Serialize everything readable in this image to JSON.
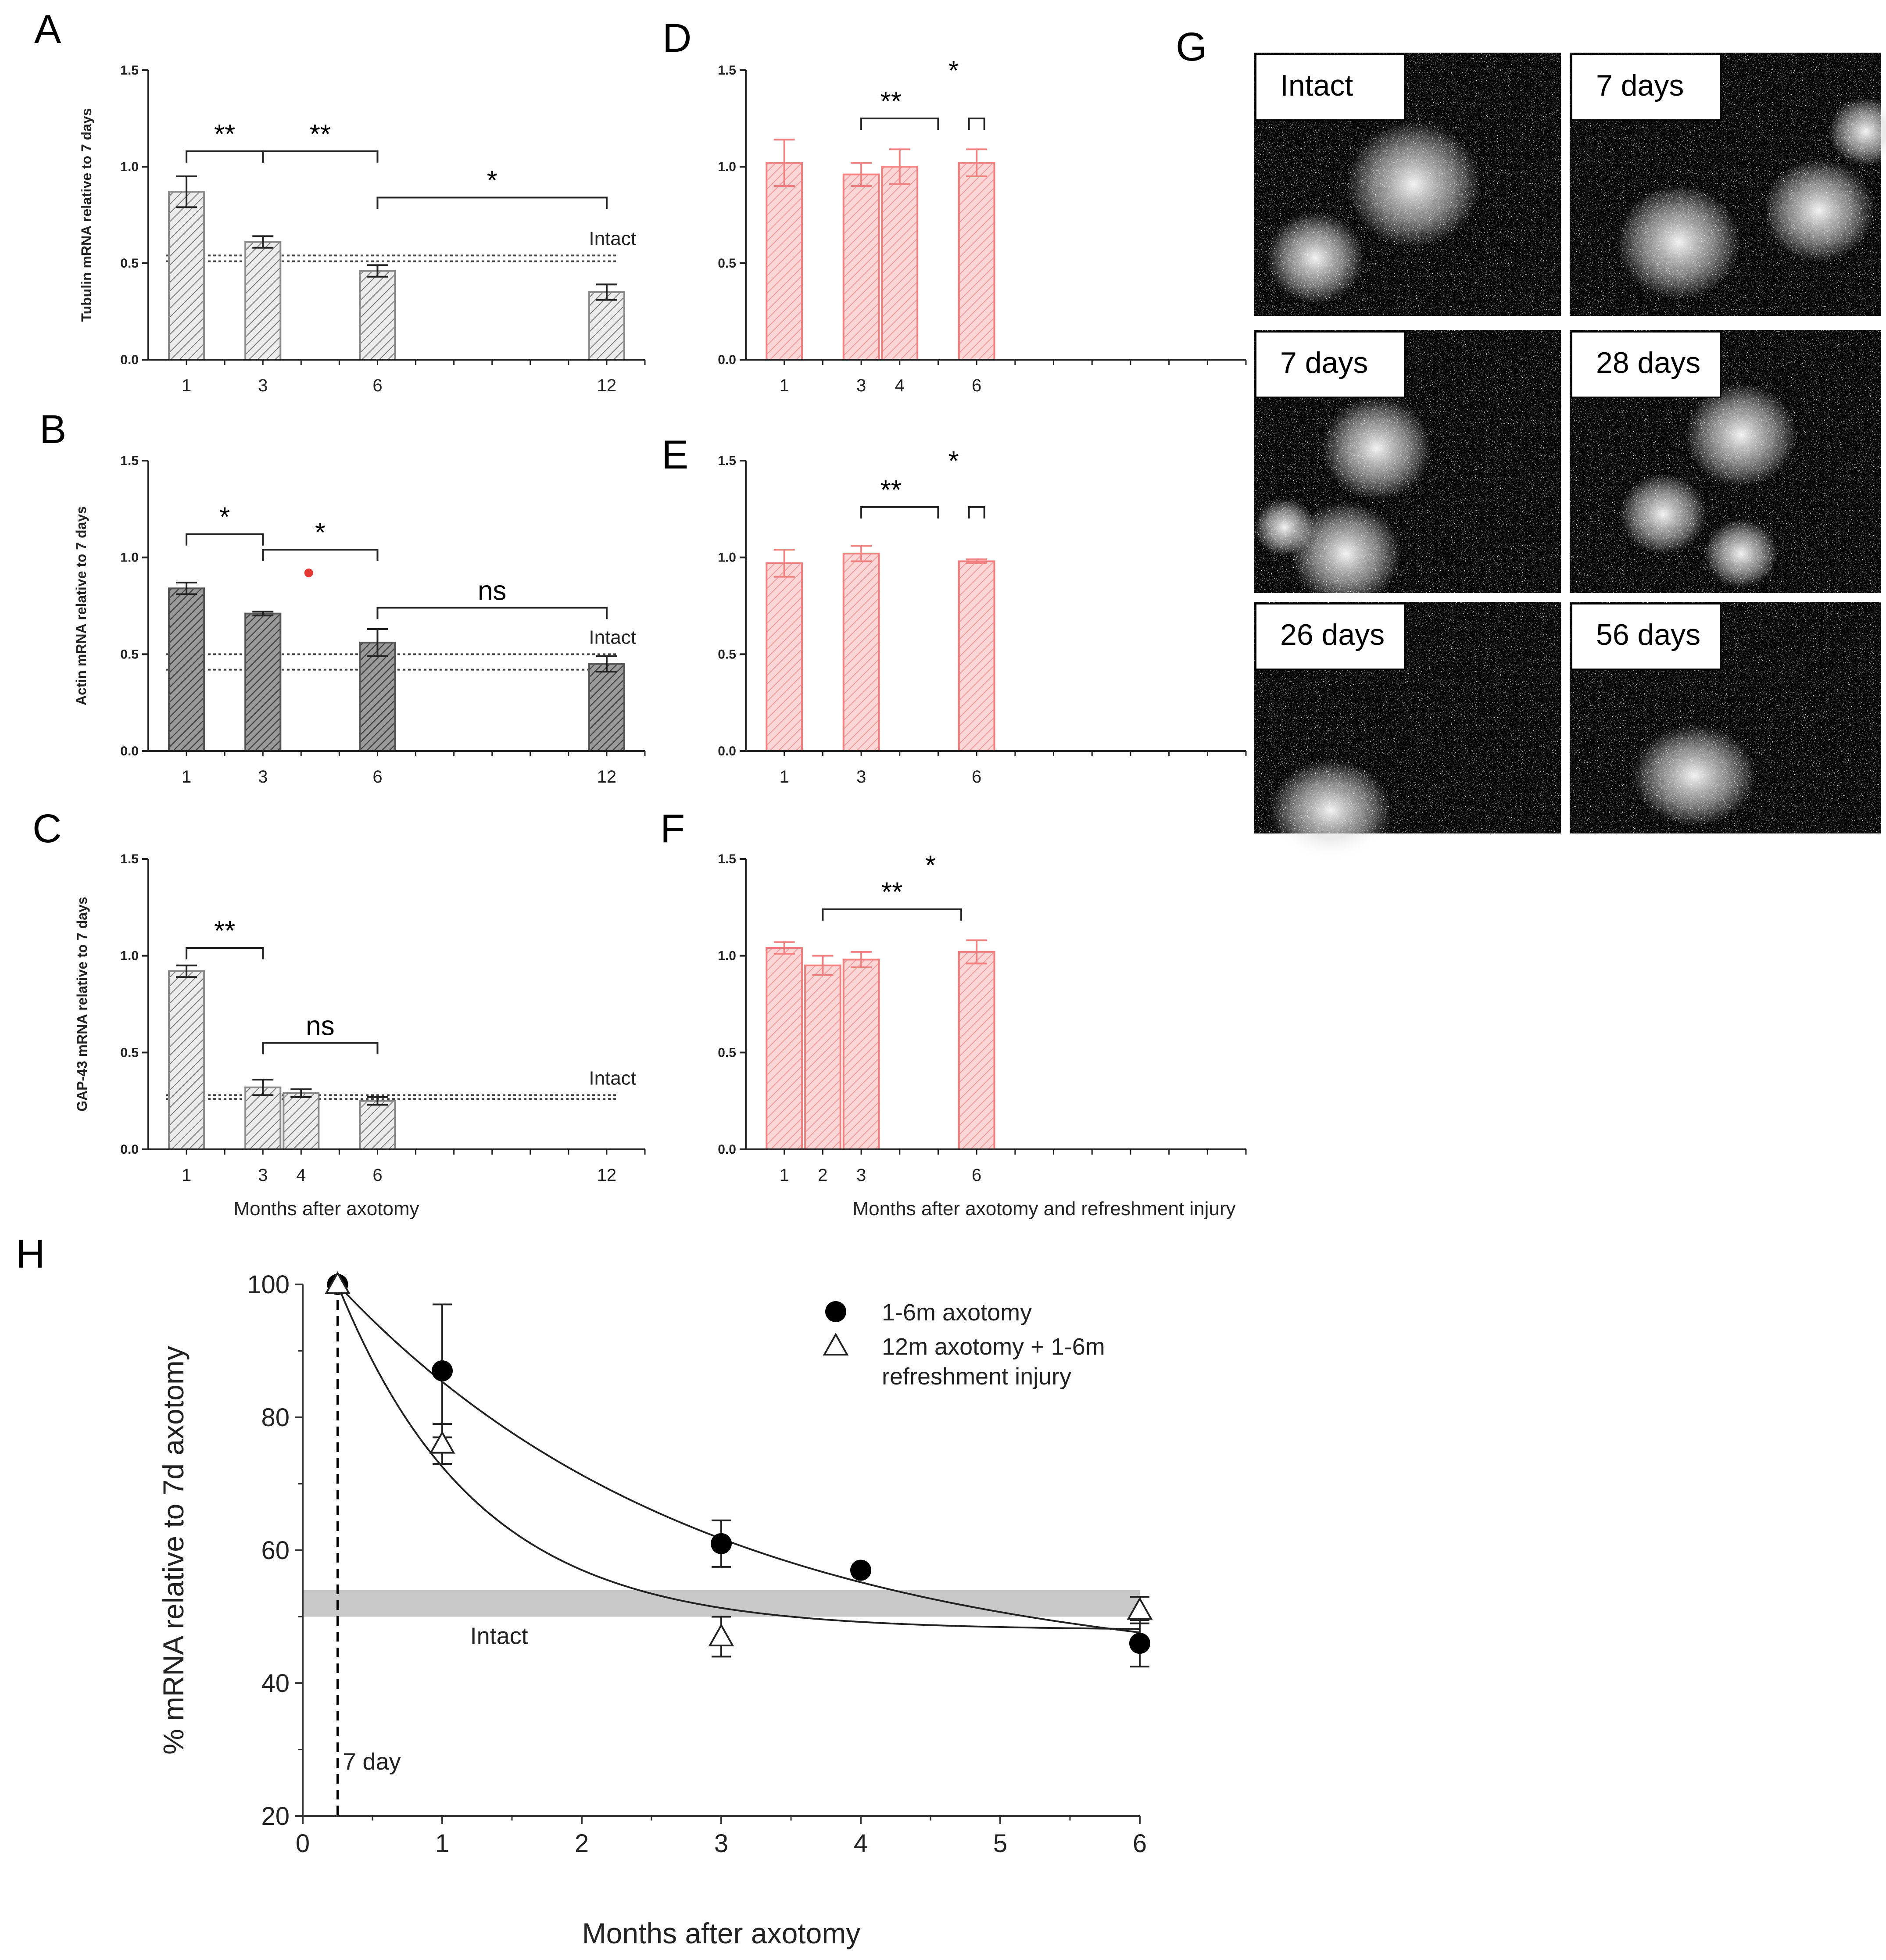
{
  "figure": {
    "panel_letters": [
      "A",
      "B",
      "C",
      "D",
      "E",
      "F",
      "G",
      "H"
    ]
  },
  "chart_data": [
    {
      "id": "A",
      "type": "bar",
      "ylabel": "Tubulin mRNA relative to 7 days",
      "ylim": [
        0,
        1.5
      ],
      "yticks": [
        "0.0",
        "0.5",
        "1.0",
        "1.5"
      ],
      "x": [
        1,
        3,
        6,
        12
      ],
      "x_ticks": [
        "1",
        "3",
        "6",
        "12"
      ],
      "x_max": 13,
      "values": [
        0.87,
        0.61,
        0.46,
        0.35
      ],
      "errors": [
        0.08,
        0.03,
        0.03,
        0.04
      ],
      "color": "#8a8a8a",
      "fill": "hatch-light",
      "intact_lines": [
        0.51,
        0.54
      ],
      "intact_label": "Intact",
      "brackets": [
        {
          "x1": 1,
          "x2": 3,
          "y": 1.08,
          "label": "**"
        },
        {
          "x1": 3,
          "x2": 6,
          "y": 1.08,
          "label": "**"
        },
        {
          "x1": 6,
          "x2": 12,
          "y": 0.84,
          "label": "*"
        }
      ]
    },
    {
      "id": "B",
      "type": "bar",
      "ylabel": "Actin mRNA relative to 7 days",
      "ylim": [
        0,
        1.5
      ],
      "yticks": [
        "0.0",
        "0.5",
        "1.0",
        "1.5"
      ],
      "x": [
        1,
        3,
        6,
        12
      ],
      "x_ticks": [
        "1",
        "3",
        "6",
        "12"
      ],
      "x_max": 13,
      "values": [
        0.84,
        0.71,
        0.56,
        0.45
      ],
      "errors": [
        0.03,
        0.01,
        0.07,
        0.04
      ],
      "color": "#555555",
      "fill": "hatch-dark",
      "intact_lines": [
        0.42,
        0.5
      ],
      "intact_label": "Intact",
      "brackets": [
        {
          "x1": 1,
          "x2": 3,
          "y": 1.12,
          "label": "*"
        },
        {
          "x1": 3,
          "x2": 6,
          "y": 1.04,
          "label": "*"
        },
        {
          "x1": 6,
          "x2": 12,
          "y": 0.74,
          "label": "ns"
        }
      ],
      "red_dot": {
        "x": 4.2,
        "y": 0.92
      }
    },
    {
      "id": "C",
      "type": "bar",
      "ylabel": "GAP-43 mRNA relative to 7 days",
      "xlabel": "Months after axotomy",
      "ylim": [
        0,
        1.5
      ],
      "yticks": [
        "0.0",
        "0.5",
        "1.0",
        "1.5"
      ],
      "x": [
        1,
        3,
        4,
        6
      ],
      "x_ticks": [
        "1",
        "3",
        "4",
        "6",
        "12"
      ],
      "x_tick_values": [
        1,
        3,
        4,
        6,
        12
      ],
      "x_max": 13,
      "values": [
        0.92,
        0.32,
        0.29,
        0.25
      ],
      "errors": [
        0.03,
        0.04,
        0.02,
        0.02
      ],
      "color": "#8a8a8a",
      "fill": "hatch-light",
      "intact_lines": [
        0.26,
        0.28
      ],
      "intact_label": "Intact",
      "brackets": [
        {
          "x1": 1,
          "x2": 3,
          "y": 1.04,
          "label": "**"
        },
        {
          "x1": 3,
          "x2": 6,
          "y": 0.55,
          "label": "ns"
        }
      ]
    },
    {
      "id": "D",
      "type": "bar",
      "ylim": [
        0,
        1.5
      ],
      "yticks": [
        "0.0",
        "0.5",
        "1.0",
        "1.5"
      ],
      "x": [
        1,
        3,
        4,
        6
      ],
      "x_ticks": [
        "1",
        "3",
        "4",
        "6"
      ],
      "x_max": 13,
      "values": [
        1.02,
        0.96,
        1.0,
        1.02
      ],
      "errors": [
        0.12,
        0.06,
        0.09,
        0.07
      ],
      "color": "#f08080",
      "fill": "hatch-red",
      "brackets": [
        {
          "x1": 3,
          "x2": 5,
          "y": 1.25,
          "label": "**",
          "open": true
        },
        {
          "x1": 5.8,
          "x2": 6.2,
          "y": 1.25,
          "label": "",
          "open": true
        }
      ],
      "star_above": {
        "x": 5.4,
        "y": 1.45,
        "label": "*"
      }
    },
    {
      "id": "E",
      "type": "bar",
      "ylim": [
        0,
        1.5
      ],
      "yticks": [
        "0.0",
        "0.5",
        "1.0",
        "1.5"
      ],
      "x": [
        1,
        3,
        6
      ],
      "x_ticks": [
        "1",
        "3",
        "6"
      ],
      "x_max": 13,
      "values": [
        0.97,
        1.02,
        0.98
      ],
      "errors": [
        0.07,
        0.04,
        0.01
      ],
      "color": "#f08080",
      "fill": "hatch-red",
      "brackets": [
        {
          "x1": 3,
          "x2": 5,
          "y": 1.26,
          "label": "**",
          "open": true
        },
        {
          "x1": 5.8,
          "x2": 6.2,
          "y": 1.26,
          "label": "",
          "open": true
        }
      ],
      "star_above": {
        "x": 5.4,
        "y": 1.45,
        "label": "*"
      }
    },
    {
      "id": "F",
      "type": "bar",
      "xlabel": "Months after axotomy and refreshment injury",
      "ylim": [
        0,
        1.5
      ],
      "yticks": [
        "0.0",
        "0.5",
        "1.0",
        "1.5"
      ],
      "x": [
        1,
        2,
        3,
        6
      ],
      "x_ticks": [
        "1",
        "2",
        "3",
        "6"
      ],
      "x_max": 13,
      "values": [
        1.04,
        0.95,
        0.98,
        1.02
      ],
      "errors": [
        0.03,
        0.05,
        0.04,
        0.06
      ],
      "color": "#f08080",
      "fill": "hatch-red",
      "brackets": [
        {
          "x1": 2,
          "x2": 5.6,
          "y": 1.24,
          "label": "**"
        }
      ],
      "star_above": {
        "x": 4.8,
        "y": 1.42,
        "label": "*"
      }
    },
    {
      "id": "H",
      "type": "scatter",
      "xlabel": "Months after axotomy",
      "ylabel": "% mRNA relative to 7d axotomy",
      "xlim": [
        0,
        6
      ],
      "ylim": [
        20,
        100
      ],
      "xticks": [
        0,
        1,
        2,
        3,
        4,
        5,
        6
      ],
      "yticks": [
        20,
        40,
        60,
        80,
        100
      ],
      "series": [
        {
          "name": "1-6m axotomy",
          "marker": "filled-circle",
          "points": [
            [
              0.25,
              100
            ],
            [
              1,
              87
            ],
            [
              3,
              61
            ],
            [
              4,
              57
            ],
            [
              6,
              46
            ]
          ],
          "errors": [
            0,
            10,
            3.5,
            0,
            3.5
          ]
        },
        {
          "name": "12m axotomy + 1-6m refreshment injury",
          "marker": "open-triangle",
          "points": [
            [
              0.25,
              100
            ],
            [
              1,
              76
            ],
            [
              3,
              47
            ],
            [
              6,
              51
            ]
          ],
          "errors": [
            0,
            3,
            3,
            2
          ]
        }
      ],
      "intact_band": [
        50,
        54
      ],
      "intact_label": "Intact",
      "vline": {
        "x": 0.25,
        "label": "7 day"
      }
    }
  ],
  "micrographs": [
    {
      "label": "Intact"
    },
    {
      "label": "7 days"
    },
    {
      "label": "7 days"
    },
    {
      "label": "28 days"
    },
    {
      "label": "26 days"
    },
    {
      "label": "56 days"
    }
  ]
}
